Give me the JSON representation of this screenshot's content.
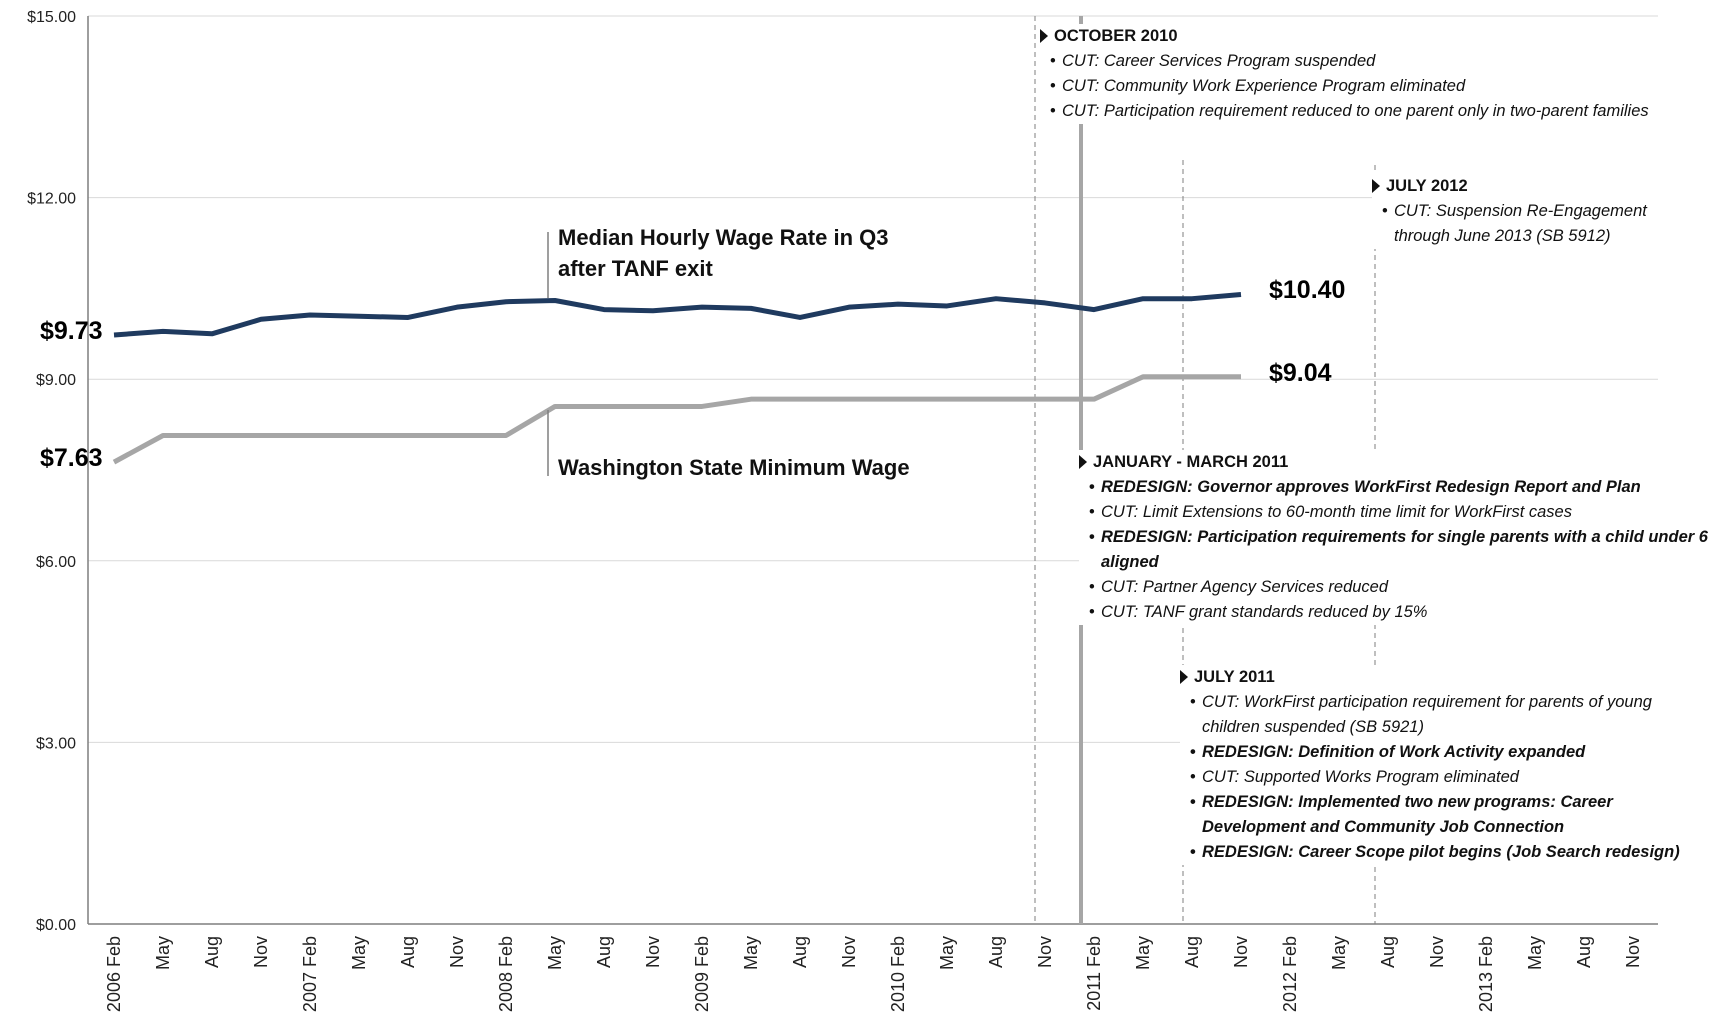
{
  "chart_data": {
    "type": "line",
    "categories": [
      "2006 Feb",
      "May",
      "Aug",
      "Nov",
      "2007 Feb",
      "May",
      "Aug",
      "Nov",
      "2008 Feb",
      "May",
      "Aug",
      "Nov",
      "2009 Feb",
      "May",
      "Aug",
      "Nov",
      "2010 Feb",
      "May",
      "Aug",
      "Nov",
      "2011 Feb",
      "May",
      "Aug",
      "Nov",
      "2012 Feb",
      "May",
      "Aug",
      "Nov",
      "2013 Feb",
      "May",
      "Aug",
      "Nov"
    ],
    "series": [
      {
        "name": "Median Hourly Wage Rate in Q3 after TANF exit",
        "color": "#1f3a5f",
        "values": [
          9.73,
          9.79,
          9.75,
          9.99,
          10.06,
          10.04,
          10.02,
          10.19,
          10.28,
          10.3,
          10.15,
          10.13,
          10.19,
          10.17,
          10.02,
          10.19,
          10.24,
          10.21,
          10.33,
          10.26,
          10.15,
          10.33,
          10.33,
          10.4,
          null,
          null,
          null,
          null,
          null,
          null,
          null,
          null
        ],
        "value_labels": [
          "$9.73",
          null,
          null,
          null,
          null,
          null,
          null,
          null,
          null,
          null,
          null,
          null,
          null,
          null,
          null,
          null,
          null,
          null,
          null,
          null,
          null,
          null,
          null,
          "$10.40",
          null,
          null,
          null,
          null,
          null,
          null,
          null,
          null
        ]
      },
      {
        "name": "Washington State Minimum Wage",
        "color": "#a6a6a6",
        "values": [
          7.63,
          8.07,
          8.07,
          8.07,
          8.07,
          8.07,
          8.07,
          8.07,
          8.07,
          8.55,
          8.55,
          8.55,
          8.55,
          8.67,
          8.67,
          8.67,
          8.67,
          8.67,
          8.67,
          8.67,
          8.67,
          9.04,
          9.04,
          9.04,
          null,
          null,
          null,
          null,
          null,
          null,
          null,
          null
        ],
        "value_labels": [
          "$7.63",
          null,
          null,
          null,
          null,
          null,
          null,
          null,
          null,
          null,
          null,
          null,
          null,
          null,
          null,
          null,
          null,
          null,
          null,
          null,
          null,
          null,
          null,
          "$9.04",
          null,
          null,
          null,
          null,
          null,
          null,
          null,
          null
        ]
      }
    ],
    "ylim": [
      0,
      15
    ],
    "yticks": [
      {
        "value": 0,
        "label": "$0.00"
      },
      {
        "value": 3,
        "label": "$3.00"
      },
      {
        "value": 6,
        "label": "$6.00"
      },
      {
        "value": 9,
        "label": "$9.00"
      },
      {
        "value": 12,
        "label": "$12.00"
      },
      {
        "value": 15,
        "label": "$15.00"
      }
    ],
    "grid": true,
    "annotations": [
      {
        "title": "OCTOBER 2010",
        "items": [
          {
            "text": "CUT: Career Services Program suspended",
            "bold": false
          },
          {
            "text": "CUT: Community Work Experience Program eliminated",
            "bold": false
          },
          {
            "text": "CUT: Participation requirement reduced to one parent only in two-parent families",
            "bold": false
          }
        ]
      },
      {
        "title": "JANUARY - MARCH 2011",
        "items": [
          {
            "text": "REDESIGN: Governor approves WorkFirst Redesign Report and Plan",
            "bold": true
          },
          {
            "text": "CUT: Limit Extensions to 60-month time limit for WorkFirst cases",
            "bold": false
          },
          {
            "text": "REDESIGN: Participation requirements for single parents with a child under 6 aligned",
            "bold": true
          },
          {
            "text": "CUT: Partner Agency Services reduced",
            "bold": false
          },
          {
            "text": "CUT: TANF grant standards reduced by 15%",
            "bold": false
          }
        ]
      },
      {
        "title": "JULY 2011",
        "items": [
          {
            "text": "CUT: WorkFirst participation requirement for parents of young children suspended (SB 5921)",
            "bold": false
          },
          {
            "text": "REDESIGN: Definition of Work Activity expanded",
            "bold": true
          },
          {
            "text": "CUT: Supported Works Program eliminated",
            "bold": false
          },
          {
            "text": "REDESIGN: Implemented two new programs: Career Development and Community Job Connection",
            "bold": true
          },
          {
            "text": "REDESIGN: Career Scope pilot begins (Job Search redesign)",
            "bold": true
          }
        ]
      },
      {
        "title": "JULY 2012",
        "items": [
          {
            "text": "CUT: Suspension Re-Engagement through June 2013 (SB 5912)",
            "bold": false
          }
        ]
      }
    ]
  }
}
